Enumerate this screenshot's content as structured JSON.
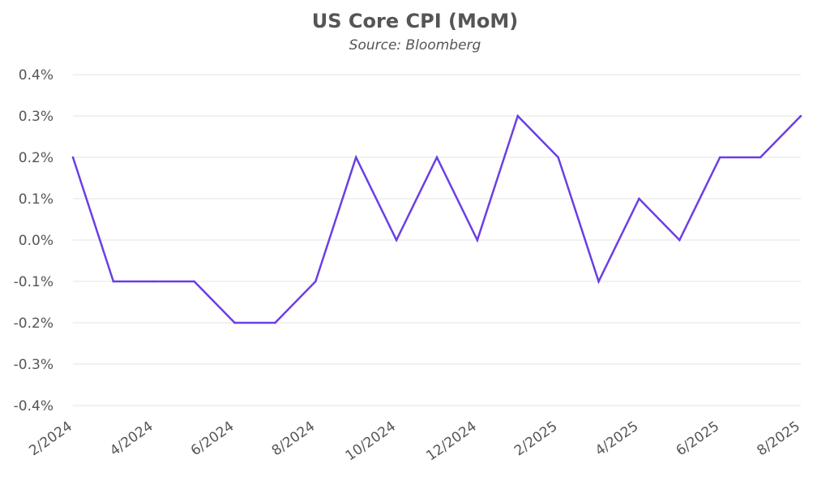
{
  "chart_data": {
    "type": "line",
    "title": "US Core CPI (MoM)",
    "subtitle": "Source: Bloomberg",
    "xlabel": "",
    "ylabel": "",
    "ylim": [
      -0.4,
      0.4
    ],
    "grid": true,
    "color": "#6b3ee6",
    "y_ticks": [
      "-0.4%",
      "-0.3%",
      "-0.2%",
      "-0.1%",
      "0.0%",
      "0.1%",
      "0.2%",
      "0.3%",
      "0.4%"
    ],
    "y_tick_values": [
      -0.4,
      -0.3,
      -0.2,
      -0.1,
      0.0,
      0.1,
      0.2,
      0.3,
      0.4
    ],
    "x_ticks": [
      "2/2024",
      "4/2024",
      "6/2024",
      "8/2024",
      "10/2024",
      "12/2024",
      "2/2025",
      "4/2025",
      "6/2025",
      "8/2025"
    ],
    "x": [
      "2/2024",
      "3/2024",
      "4/2024",
      "5/2024",
      "6/2024",
      "7/2024",
      "8/2024",
      "9/2024",
      "10/2024",
      "11/2024",
      "12/2024",
      "1/2025",
      "2/2025",
      "3/2025",
      "4/2025",
      "5/2025",
      "6/2025",
      "7/2025",
      "8/2025"
    ],
    "series": [
      {
        "name": "US Core CPI (MoM)",
        "values": [
          0.2,
          -0.1,
          -0.1,
          -0.1,
          -0.2,
          -0.2,
          -0.1,
          0.2,
          0.0,
          0.2,
          0.0,
          0.3,
          0.2,
          -0.1,
          0.1,
          0.0,
          0.2,
          0.2,
          0.3
        ]
      }
    ]
  }
}
